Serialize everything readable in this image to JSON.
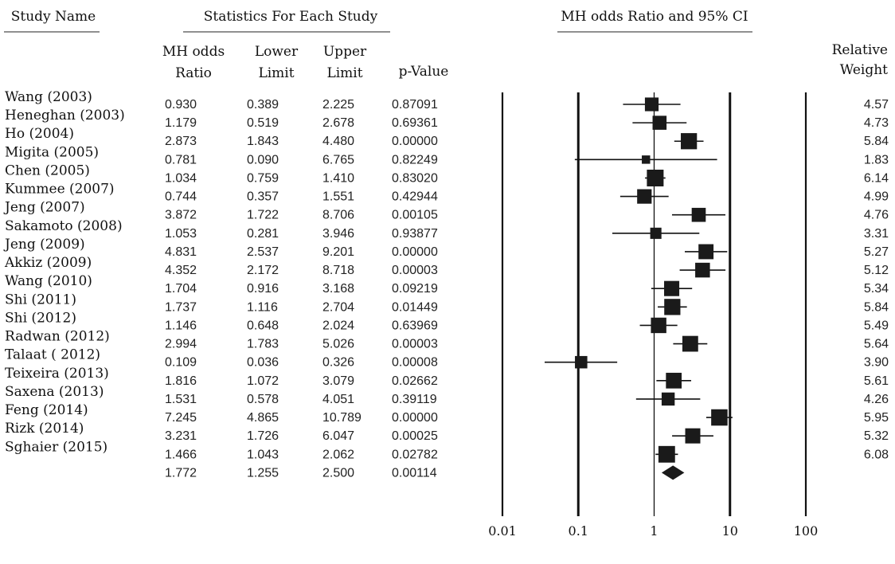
{
  "headers": {
    "study_name": "Study Name",
    "statistics": "Statistics For Each Study",
    "plot_title": "MH odds Ratio and 95% CI",
    "col_or": [
      "MH odds",
      "Ratio"
    ],
    "col_lower": [
      "Lower",
      "Limit"
    ],
    "col_upper": [
      "Upper",
      "Limit"
    ],
    "col_p": "p-Value",
    "col_weight": [
      "Relative",
      "Weight"
    ]
  },
  "chart_data": {
    "type": "forest",
    "title": "MH odds Ratio and 95% CI",
    "x_scale": "log",
    "xlim": [
      0.01,
      100
    ],
    "x_ticks": [
      0.01,
      0.1,
      1,
      10,
      100
    ],
    "x_tick_labels": [
      "0.01",
      "0.1",
      "1",
      "10",
      "100"
    ],
    "studies": [
      {
        "name": "Wang (2003)",
        "or": "0.930",
        "lower": "0.389",
        "upper": "2.225",
        "p": "0.87091",
        "weight": "4.57"
      },
      {
        "name": "Heneghan (2003)",
        "or": "1.179",
        "lower": "0.519",
        "upper": "2.678",
        "p": "0.69361",
        "weight": "4.73"
      },
      {
        "name": "Ho (2004)",
        "or": "2.873",
        "lower": "1.843",
        "upper": "4.480",
        "p": "0.00000",
        "weight": "5.84"
      },
      {
        "name": "Migita (2005)",
        "or": "0.781",
        "lower": "0.090",
        "upper": "6.765",
        "p": "0.82249",
        "weight": "1.83"
      },
      {
        "name": "Chen (2005)",
        "or": "1.034",
        "lower": "0.759",
        "upper": "1.410",
        "p": "0.83020",
        "weight": "6.14"
      },
      {
        "name": "Kummee (2007)",
        "or": "0.744",
        "lower": "0.357",
        "upper": "1.551",
        "p": "0.42944",
        "weight": "4.99"
      },
      {
        "name": "Jeng (2007)",
        "or": "3.872",
        "lower": "1.722",
        "upper": "8.706",
        "p": "0.00105",
        "weight": "4.76"
      },
      {
        "name": "Sakamoto (2008)",
        "or": "1.053",
        "lower": "0.281",
        "upper": "3.946",
        "p": "0.93877",
        "weight": "3.31"
      },
      {
        "name": "Jeng (2009)",
        "or": "4.831",
        "lower": "2.537",
        "upper": "9.201",
        "p": "0.00000",
        "weight": "5.27"
      },
      {
        "name": "Akkiz (2009)",
        "or": "4.352",
        "lower": "2.172",
        "upper": "8.718",
        "p": "0.00003",
        "weight": "5.12"
      },
      {
        "name": "Wang (2010)",
        "or": "1.704",
        "lower": "0.916",
        "upper": "3.168",
        "p": "0.09219",
        "weight": "5.34"
      },
      {
        "name": "Shi (2011)",
        "or": "1.737",
        "lower": "1.116",
        "upper": "2.704",
        "p": "0.01449",
        "weight": "5.84"
      },
      {
        "name": "Shi (2012)",
        "or": "1.146",
        "lower": "0.648",
        "upper": "2.024",
        "p": "0.63969",
        "weight": "5.49"
      },
      {
        "name": "Radwan (2012)",
        "or": "2.994",
        "lower": "1.783",
        "upper": "5.026",
        "p": "0.00003",
        "weight": "5.64"
      },
      {
        "name": "Talaat ( 2012)",
        "or": "0.109",
        "lower": "0.036",
        "upper": "0.326",
        "p": "0.00008",
        "weight": "3.90"
      },
      {
        "name": "Teixeira (2013)",
        "or": "1.816",
        "lower": "1.072",
        "upper": "3.079",
        "p": "0.02662",
        "weight": "5.61"
      },
      {
        "name": "Saxena (2013)",
        "or": "1.531",
        "lower": "0.578",
        "upper": "4.051",
        "p": "0.39119",
        "weight": "4.26"
      },
      {
        "name": "Feng (2014)",
        "or": "7.245",
        "lower": "4.865",
        "upper": "10.789",
        "p": "0.00000",
        "weight": "5.95"
      },
      {
        "name": "Rizk (2014)",
        "or": "3.231",
        "lower": "1.726",
        "upper": "6.047",
        "p": "0.00025",
        "weight": "5.32"
      },
      {
        "name": "Sghaier (2015)",
        "or": "1.466",
        "lower": "1.043",
        "upper": "2.062",
        "p": "0.02782",
        "weight": "6.08"
      }
    ],
    "summary": {
      "or": "1.772",
      "lower": "1.255",
      "upper": "2.500",
      "p": "0.00114"
    }
  }
}
